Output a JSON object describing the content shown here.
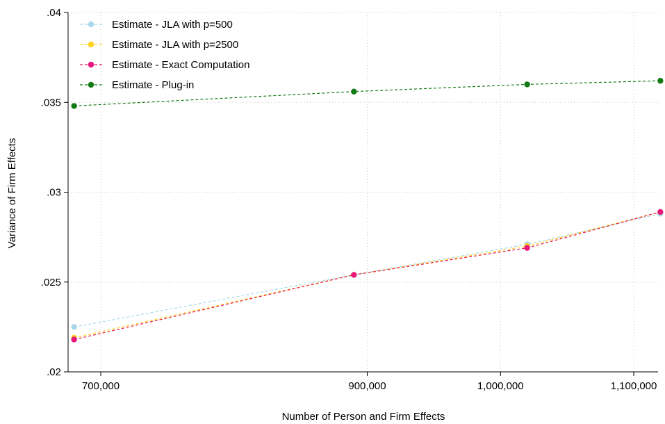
{
  "chart_data": {
    "type": "line",
    "title": "",
    "xlabel": "Number of Person and Firm Effects",
    "ylabel": "Variance of Firm Effects",
    "xlim": [
      663000,
      1110000
    ],
    "ylim": [
      0.02,
      0.04
    ],
    "x_ticks": [
      700000,
      900000,
      1000000,
      1100000
    ],
    "x_tick_labels": [
      "700,000",
      "900,000",
      "1,000,000",
      "1,100,000"
    ],
    "y_ticks": [
      0.02,
      0.025,
      0.03,
      0.035,
      0.04
    ],
    "y_tick_labels": [
      ".02",
      ".025",
      ".03",
      ".035",
      ".04"
    ],
    "grid": true,
    "legend_position": "top-left",
    "x": [
      680000,
      890000,
      1020000,
      1120000
    ],
    "series": [
      {
        "name": "Estimate - JLA with p=500",
        "color": "#a8d8ea",
        "values": [
          0.0225,
          0.0254,
          0.0271,
          0.0288
        ]
      },
      {
        "name": "Estimate - JLA with p=2500",
        "color": "#ffd21f",
        "values": [
          0.0219,
          0.0254,
          0.027,
          0.0289
        ]
      },
      {
        "name": "Estimate - Exact Computation",
        "color": "#e8177d",
        "line_color": "#e8174a",
        "values": [
          0.0218,
          0.0254,
          0.0269,
          0.0289
        ]
      },
      {
        "name": "Estimate - Plug-in",
        "color": "#137a13",
        "values": [
          0.0348,
          0.0356,
          0.036,
          0.0362
        ]
      }
    ]
  }
}
